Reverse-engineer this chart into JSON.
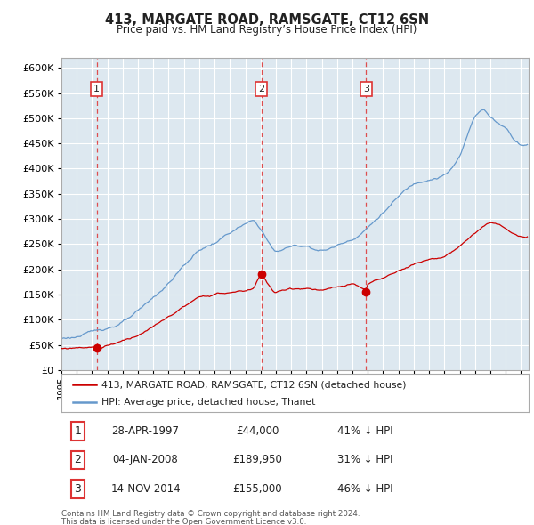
{
  "title": "413, MARGATE ROAD, RAMSGATE, CT12 6SN",
  "subtitle": "Price paid vs. HM Land Registry’s House Price Index (HPI)",
  "ylabel_values": [
    0,
    50000,
    100000,
    150000,
    200000,
    250000,
    300000,
    350000,
    400000,
    450000,
    500000,
    550000,
    600000
  ],
  "ylim": [
    0,
    620000
  ],
  "xlim_start": 1995.0,
  "xlim_end": 2025.5,
  "sale_dates_num": [
    1997.3,
    2008.05,
    2014.88
  ],
  "sale_prices": [
    44000,
    189950,
    155000
  ],
  "sale_labels": [
    "1",
    "2",
    "3"
  ],
  "sale_date_strings": [
    "28-APR-1997",
    "04-JAN-2008",
    "14-NOV-2014"
  ],
  "sale_price_strings": [
    "£44,000",
    "£189,950",
    "£155,000"
  ],
  "sale_hpi_strings": [
    "41% ↓ HPI",
    "31% ↓ HPI",
    "46% ↓ HPI"
  ],
  "legend_line1": "413, MARGATE ROAD, RAMSGATE, CT12 6SN (detached house)",
  "legend_line2": "HPI: Average price, detached house, Thanet",
  "footer1": "Contains HM Land Registry data © Crown copyright and database right 2024.",
  "footer2": "This data is licensed under the Open Government Licence v3.0.",
  "red_color": "#cc0000",
  "blue_color": "#6699cc",
  "bg_color": "#dde8f0",
  "grid_color": "#ffffff",
  "dashed_color": "#dd3333",
  "label_box_color": "#dd3333"
}
